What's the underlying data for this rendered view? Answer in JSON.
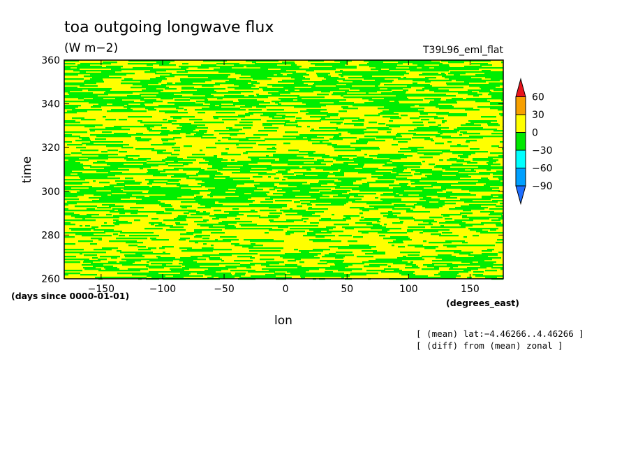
{
  "chart_data": {
    "type": "heatmap",
    "title": "toa outgoing longwave flux",
    "units": "(W m−2)",
    "experiment": "T39L96_eml_flat",
    "xlabel": "lon",
    "x_units": "(degrees_east)",
    "ylabel": "time",
    "y_units": "(days since 0000-01-01)",
    "xlim": [
      -180,
      177
    ],
    "ylim": [
      260,
      360
    ],
    "x_ticks": [
      -150,
      -100,
      -50,
      0,
      50,
      100,
      150
    ],
    "y_ticks": [
      260,
      280,
      300,
      320,
      340,
      360
    ],
    "notes": [
      "[ (mean) lat:−4.46266..4.46266 ]",
      "[ (diff) from (mean) zonal ]"
    ],
    "colorbar": {
      "levels": [
        -90,
        -60,
        -30,
        0,
        30,
        60
      ],
      "labels": [
        "60",
        "30",
        "0",
        "−30",
        "−60",
        "−90"
      ],
      "colors": [
        "#e8141c",
        "#f7a000",
        "#ffff00",
        "#00e800",
        "#00ffff",
        "#00a0ff",
        "#1e6eff"
      ],
      "extend": "both"
    },
    "field_description": "anomaly values mostly between -30 and 30: yellow (0..30) and green (-30..0) horizontal streaks",
    "dominant_colors": [
      "#ffff00",
      "#00ee00"
    ]
  }
}
